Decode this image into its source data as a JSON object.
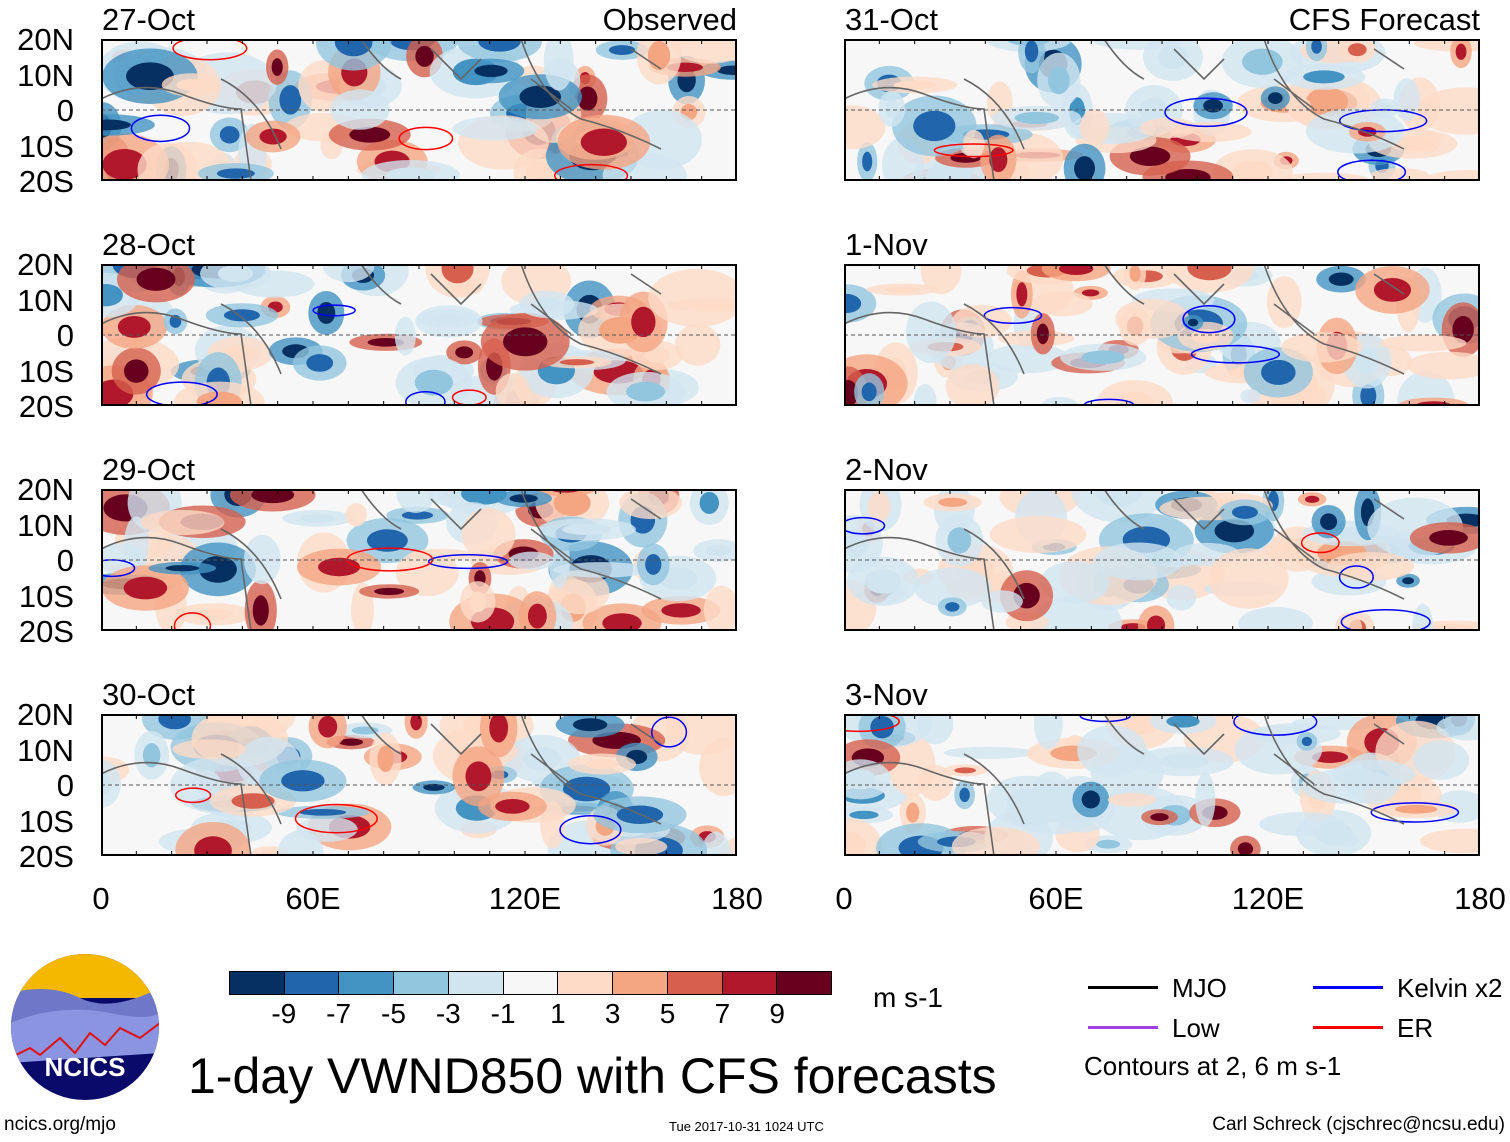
{
  "chart_data": {
    "type": "heatmap",
    "title": "1-day VWND850 with CFS forecasts",
    "units": "m s-1",
    "columns": [
      {
        "header": "Observed",
        "panels": [
          "27-Oct",
          "28-Oct",
          "29-Oct",
          "30-Oct"
        ]
      },
      {
        "header": "CFS Forecast",
        "panels": [
          "31-Oct",
          "1-Nov",
          "2-Nov",
          "3-Nov"
        ]
      }
    ],
    "lat_ticks": [
      "20N",
      "10N",
      "0",
      "10S",
      "20S"
    ],
    "lon_ticks": [
      "0",
      "60E",
      "120E",
      "180"
    ],
    "lat_range": [
      -20,
      20
    ],
    "lon_range": [
      0,
      180
    ],
    "colorbar": {
      "levels": [
        "-9",
        "-7",
        "-5",
        "-3",
        "-1",
        "1",
        "3",
        "5",
        "7",
        "9"
      ],
      "colors": [
        "#053061",
        "#2166ac",
        "#4393c3",
        "#92c5de",
        "#d1e5f0",
        "#f7f7f7",
        "#fddbc7",
        "#f4a582",
        "#d6604d",
        "#b2182b",
        "#67001f"
      ]
    },
    "legend": [
      {
        "label": "MJO",
        "color": "#000000"
      },
      {
        "label": "Kelvin x2",
        "color": "#0000ff"
      },
      {
        "label": "Low",
        "color": "#a040e0"
      },
      {
        "label": "ER",
        "color": "#ff0000"
      }
    ],
    "contour_note": "Contours at 2, 6 m s-1"
  },
  "footer": {
    "logo_text": "NCICS",
    "url": "ncics.org/mjo",
    "timestamp": "Tue 2017-10-31 1024 UTC",
    "author": "Carl Schreck (cjschrec@ncsu.edu)"
  }
}
